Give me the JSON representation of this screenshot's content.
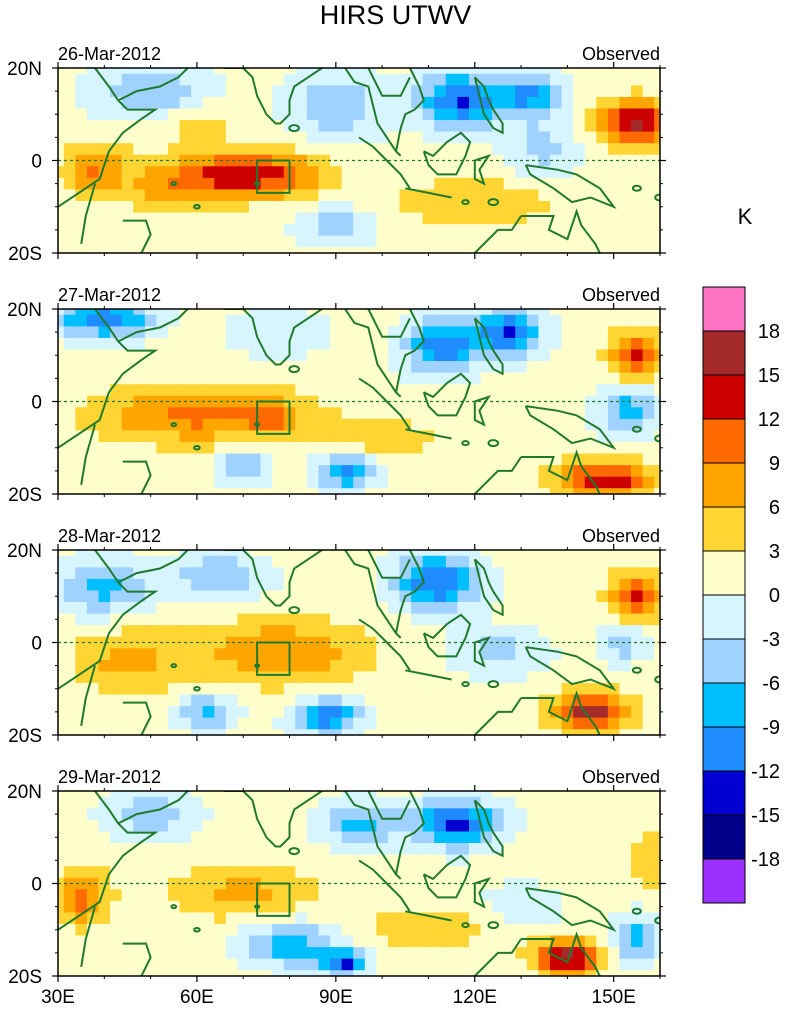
{
  "chart_data": {
    "type": "heatmap",
    "title": "HIRS UTWV",
    "units_label": "K",
    "x_ticks": [
      "30E",
      "60E",
      "90E",
      "120E",
      "150E"
    ],
    "x_tick_values": [
      30,
      60,
      90,
      120,
      150
    ],
    "y_ticks": [
      "20N",
      "0",
      "20S"
    ],
    "y_tick_values": [
      20,
      0,
      -20
    ],
    "xlim": [
      30,
      160
    ],
    "ylim": [
      -20,
      20
    ],
    "color_levels": [
      "18",
      "15",
      "12",
      "9",
      "6",
      "3",
      "0",
      "-3",
      "-6",
      "-9",
      "-12",
      "-15",
      "-18"
    ],
    "color_scale": [
      {
        "from": 18,
        "to": 21,
        "color": "#ff73c4"
      },
      {
        "from": 15,
        "to": 18,
        "color": "#a52a2a"
      },
      {
        "from": 12,
        "to": 15,
        "color": "#cc0000"
      },
      {
        "from": 9,
        "to": 12,
        "color": "#ff6a00"
      },
      {
        "from": 6,
        "to": 9,
        "color": "#ffa500"
      },
      {
        "from": 3,
        "to": 6,
        "color": "#ffd533"
      },
      {
        "from": 0,
        "to": 3,
        "color": "#ffffcc"
      },
      {
        "from": -3,
        "to": 0,
        "color": "#d6f5ff"
      },
      {
        "from": -6,
        "to": -3,
        "color": "#a0d2ff"
      },
      {
        "from": -9,
        "to": -6,
        "color": "#00bfff"
      },
      {
        "from": -12,
        "to": -9,
        "color": "#1e8cff"
      },
      {
        "from": -15,
        "to": -12,
        "color": "#0000d0"
      },
      {
        "from": -18,
        "to": -15,
        "color": "#00008b"
      },
      {
        "from": -21,
        "to": -18,
        "color": "#9b30ff"
      }
    ],
    "box_region": {
      "lon": [
        73,
        80
      ],
      "lat": [
        -7,
        0
      ]
    },
    "panels": [
      {
        "date": "26-Mar-2012",
        "label": "Observed",
        "features": [
          {
            "lon": 72,
            "lat": -3,
            "sx": 15,
            "sy": 5,
            "amp": 13
          },
          {
            "lon": 38,
            "lat": -2,
            "sx": 7,
            "sy": 6,
            "amp": 8
          },
          {
            "lon": 55,
            "lat": -6,
            "sx": 10,
            "sy": 6,
            "amp": 6
          },
          {
            "lon": 155,
            "lat": 8,
            "sx": 8,
            "sy": 5,
            "amp": 15
          },
          {
            "lon": 120,
            "lat": -9,
            "sx": 18,
            "sy": 5,
            "amp": 5
          },
          {
            "lon": 117,
            "lat": 13,
            "sx": 9,
            "sy": 6,
            "amp": -13
          },
          {
            "lon": 132,
            "lat": 14,
            "sx": 7,
            "sy": 5,
            "amp": -10
          },
          {
            "lon": 90,
            "lat": 12,
            "sx": 10,
            "sy": 8,
            "amp": -6
          },
          {
            "lon": 50,
            "lat": 15,
            "sx": 12,
            "sy": 6,
            "amp": -7
          },
          {
            "lon": 135,
            "lat": 2,
            "sx": 8,
            "sy": 6,
            "amp": -5
          },
          {
            "lon": 90,
            "lat": -14,
            "sx": 8,
            "sy": 4,
            "amp": -6
          },
          {
            "lon": 60,
            "lat": 8,
            "sx": 8,
            "sy": 4,
            "amp": 4
          }
        ]
      },
      {
        "date": "27-Mar-2012",
        "label": "Observed",
        "features": [
          {
            "lon": 60,
            "lat": -3,
            "sx": 22,
            "sy": 6,
            "amp": 9
          },
          {
            "lon": 76,
            "lat": -3,
            "sx": 6,
            "sy": 4,
            "amp": 5
          },
          {
            "lon": 148,
            "lat": -17,
            "sx": 10,
            "sy": 4,
            "amp": 14
          },
          {
            "lon": 155,
            "lat": 10,
            "sx": 6,
            "sy": 5,
            "amp": 12
          },
          {
            "lon": 100,
            "lat": -8,
            "sx": 12,
            "sy": 5,
            "amp": 4
          },
          {
            "lon": 40,
            "lat": 18,
            "sx": 10,
            "sy": 4,
            "amp": -13
          },
          {
            "lon": 113,
            "lat": 12,
            "sx": 8,
            "sy": 6,
            "amp": -12
          },
          {
            "lon": 127,
            "lat": 15,
            "sx": 7,
            "sy": 5,
            "amp": -13
          },
          {
            "lon": 92,
            "lat": -15,
            "sx": 6,
            "sy": 4,
            "amp": -11
          },
          {
            "lon": 70,
            "lat": -14,
            "sx": 5,
            "sy": 4,
            "amp": -7
          },
          {
            "lon": 153,
            "lat": -2,
            "sx": 6,
            "sy": 5,
            "amp": -9
          },
          {
            "lon": 78,
            "lat": 15,
            "sx": 10,
            "sy": 5,
            "amp": -4
          }
        ]
      },
      {
        "date": "28-Mar-2012",
        "label": "Observed",
        "features": [
          {
            "lon": 78,
            "lat": -2,
            "sx": 18,
            "sy": 7,
            "amp": 8
          },
          {
            "lon": 45,
            "lat": -4,
            "sx": 12,
            "sy": 7,
            "amp": 6
          },
          {
            "lon": 145,
            "lat": -15,
            "sx": 8,
            "sy": 4,
            "amp": 16
          },
          {
            "lon": 155,
            "lat": 10,
            "sx": 6,
            "sy": 5,
            "amp": 12
          },
          {
            "lon": 40,
            "lat": 12,
            "sx": 10,
            "sy": 6,
            "amp": -8
          },
          {
            "lon": 65,
            "lat": 14,
            "sx": 10,
            "sy": 5,
            "amp": -7
          },
          {
            "lon": 112,
            "lat": 13,
            "sx": 9,
            "sy": 6,
            "amp": -13
          },
          {
            "lon": 88,
            "lat": -16,
            "sx": 7,
            "sy": 4,
            "amp": -12
          },
          {
            "lon": 62,
            "lat": -15,
            "sx": 6,
            "sy": 4,
            "amp": -8
          },
          {
            "lon": 125,
            "lat": -2,
            "sx": 10,
            "sy": 5,
            "amp": -5
          },
          {
            "lon": 152,
            "lat": 0,
            "sx": 5,
            "sy": 4,
            "amp": -6
          }
        ]
      },
      {
        "date": "29-Mar-2012",
        "label": "Observed",
        "features": [
          {
            "lon": 70,
            "lat": -2,
            "sx": 16,
            "sy": 6,
            "amp": 6
          },
          {
            "lon": 35,
            "lat": -3,
            "sx": 6,
            "sy": 6,
            "amp": 9
          },
          {
            "lon": 140,
            "lat": -16,
            "sx": 7,
            "sy": 4,
            "amp": 16
          },
          {
            "lon": 110,
            "lat": -10,
            "sx": 15,
            "sy": 5,
            "amp": 4
          },
          {
            "lon": 158,
            "lat": 5,
            "sx": 5,
            "sy": 6,
            "amp": 5
          },
          {
            "lon": 116,
            "lat": 13,
            "sx": 9,
            "sy": 5,
            "amp": -14
          },
          {
            "lon": 95,
            "lat": 13,
            "sx": 8,
            "sy": 5,
            "amp": -8
          },
          {
            "lon": 50,
            "lat": 15,
            "sx": 10,
            "sy": 5,
            "amp": -6
          },
          {
            "lon": 80,
            "lat": -13,
            "sx": 10,
            "sy": 5,
            "amp": -9
          },
          {
            "lon": 92,
            "lat": -17,
            "sx": 5,
            "sy": 3,
            "amp": -13
          },
          {
            "lon": 155,
            "lat": -12,
            "sx": 5,
            "sy": 5,
            "amp": -9
          },
          {
            "lon": 130,
            "lat": -5,
            "sx": 8,
            "sy": 5,
            "amp": -4
          }
        ]
      }
    ]
  }
}
